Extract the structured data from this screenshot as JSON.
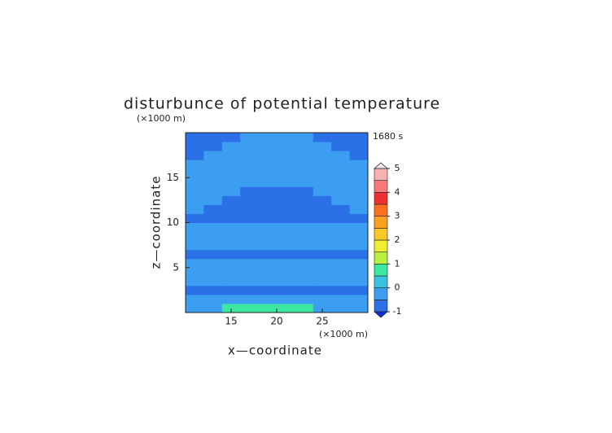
{
  "chart_data": {
    "type": "contour",
    "title": "disturbunce of potential temperature",
    "x_label": "x—coordinate",
    "y_label": "z—coordinate",
    "x_unit": "(×1000 m)",
    "y_unit": "(×1000 m)",
    "time_label": "1680 s",
    "xlim": [
      10,
      30
    ],
    "ylim": [
      0,
      20
    ],
    "xticks": [
      15,
      20,
      25
    ],
    "yticks": [
      5,
      10,
      15
    ],
    "x": [
      11,
      13,
      15,
      17,
      19,
      21,
      23,
      25,
      27,
      29
    ],
    "y": [
      0.5,
      1.5,
      2.5,
      3.5,
      4.5,
      5.5,
      6.5,
      7.5,
      8.5,
      9.5,
      10.5,
      11.5,
      12.5,
      13.5,
      14.5,
      15.5,
      16.5,
      17.5,
      18.5,
      19.5
    ],
    "z": [
      [
        -0.3,
        -0.3,
        0.6,
        0.6,
        0.6,
        0.6,
        0.6,
        -0.3,
        -0.3,
        -0.3
      ],
      [
        -0.3,
        -0.3,
        -0.3,
        -0.3,
        -0.3,
        -0.3,
        -0.3,
        -0.3,
        -0.3,
        -0.3
      ],
      [
        -0.7,
        -0.7,
        -0.7,
        -0.7,
        -0.7,
        -0.7,
        -0.7,
        -0.7,
        -0.7,
        -0.7
      ],
      [
        -0.3,
        -0.3,
        -0.3,
        -0.3,
        -0.3,
        -0.3,
        -0.3,
        -0.3,
        -0.3,
        -0.3
      ],
      [
        -0.3,
        -0.3,
        -0.3,
        -0.3,
        -0.3,
        -0.3,
        -0.3,
        -0.3,
        -0.3,
        -0.3
      ],
      [
        -0.3,
        -0.3,
        -0.3,
        -0.3,
        -0.3,
        -0.3,
        -0.3,
        -0.3,
        -0.3,
        -0.3
      ],
      [
        -0.7,
        -0.7,
        -0.7,
        -0.7,
        -0.7,
        -0.7,
        -0.7,
        -0.7,
        -0.7,
        -0.7
      ],
      [
        -0.3,
        -0.3,
        -0.3,
        -0.3,
        -0.3,
        -0.3,
        -0.3,
        -0.3,
        -0.3,
        -0.3
      ],
      [
        -0.3,
        -0.3,
        -0.3,
        -0.3,
        -0.3,
        -0.3,
        -0.3,
        -0.3,
        -0.3,
        -0.3
      ],
      [
        -0.3,
        -0.3,
        -0.3,
        -0.3,
        -0.3,
        -0.3,
        -0.3,
        -0.3,
        -0.3,
        -0.3
      ],
      [
        -0.7,
        -0.7,
        -0.7,
        -0.7,
        -0.7,
        -0.7,
        -0.7,
        -0.7,
        -0.7,
        -0.7
      ],
      [
        -0.3,
        -0.7,
        -0.7,
        -0.7,
        -0.7,
        -0.7,
        -0.7,
        -0.7,
        -0.7,
        -0.3
      ],
      [
        -0.3,
        -0.3,
        -0.7,
        -0.7,
        -0.7,
        -0.7,
        -0.7,
        -0.7,
        -0.3,
        -0.3
      ],
      [
        -0.3,
        -0.3,
        -0.3,
        -0.7,
        -0.7,
        -0.7,
        -0.7,
        -0.3,
        -0.3,
        -0.3
      ],
      [
        -0.3,
        -0.3,
        -0.3,
        -0.3,
        -0.3,
        -0.3,
        -0.3,
        -0.3,
        -0.3,
        -0.3
      ],
      [
        -0.3,
        -0.3,
        -0.3,
        -0.3,
        -0.3,
        -0.3,
        -0.3,
        -0.3,
        -0.3,
        -0.3
      ],
      [
        -0.3,
        -0.3,
        -0.3,
        -0.3,
        -0.3,
        -0.3,
        -0.3,
        -0.3,
        -0.3,
        -0.3
      ],
      [
        -0.7,
        -0.3,
        -0.3,
        -0.3,
        -0.3,
        -0.3,
        -0.3,
        -0.3,
        -0.3,
        -0.7
      ],
      [
        -0.7,
        -0.7,
        -0.3,
        -0.3,
        -0.3,
        -0.3,
        -0.3,
        -0.3,
        -0.7,
        -0.7
      ],
      [
        -0.7,
        -0.7,
        -0.7,
        -0.3,
        -0.3,
        -0.3,
        -0.3,
        -0.7,
        -0.7,
        -0.7
      ]
    ],
    "levels": [
      -1,
      -0.5,
      0,
      0.5,
      1,
      1.5,
      2,
      2.5,
      3,
      3.5,
      4,
      4.5,
      5
    ],
    "colors": [
      "#2b70e6",
      "#3c9ef0",
      "#38c4e0",
      "#3ce8a0",
      "#b8f040",
      "#f0f030",
      "#f8c828",
      "#f8a020",
      "#f87020",
      "#f03030",
      "#f87878",
      "#f8b0b0"
    ],
    "colorbar_ticks": [
      -1,
      0,
      1,
      2,
      3,
      4,
      5
    ]
  }
}
